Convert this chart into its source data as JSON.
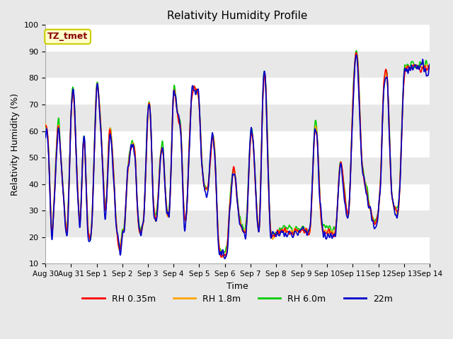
{
  "title": "Relativity Humidity Profile",
  "xlabel": "Time",
  "ylabel": "Relativity Humidity (%)",
  "ylim": [
    10,
    100
  ],
  "yticks": [
    10,
    20,
    30,
    40,
    50,
    60,
    70,
    80,
    90,
    100
  ],
  "xtick_labels": [
    "Aug 30",
    "Aug 31",
    "Sep 1",
    "Sep 2",
    "Sep 3",
    "Sep 4",
    "Sep 5",
    "Sep 6",
    "Sep 7",
    "Sep 8",
    "Sep 9",
    "Sep 10",
    "Sep 11",
    "Sep 12",
    "Sep 13",
    "Sep 14"
  ],
  "annotation_text": "TZ_tmet",
  "annotation_color": "#8B0000",
  "annotation_bg": "#FFFFCC",
  "annotation_border": "#CCCC00",
  "colors": {
    "RH 0.35m": "#FF0000",
    "RH 1.8m": "#FFA500",
    "RH 6.0m": "#00CC00",
    "22m": "#0000CC"
  },
  "line_width": 1.2,
  "bg_even": "#FFFFFF",
  "bg_odd": "#E8E8E8",
  "fig_bg": "#E8E8E8"
}
